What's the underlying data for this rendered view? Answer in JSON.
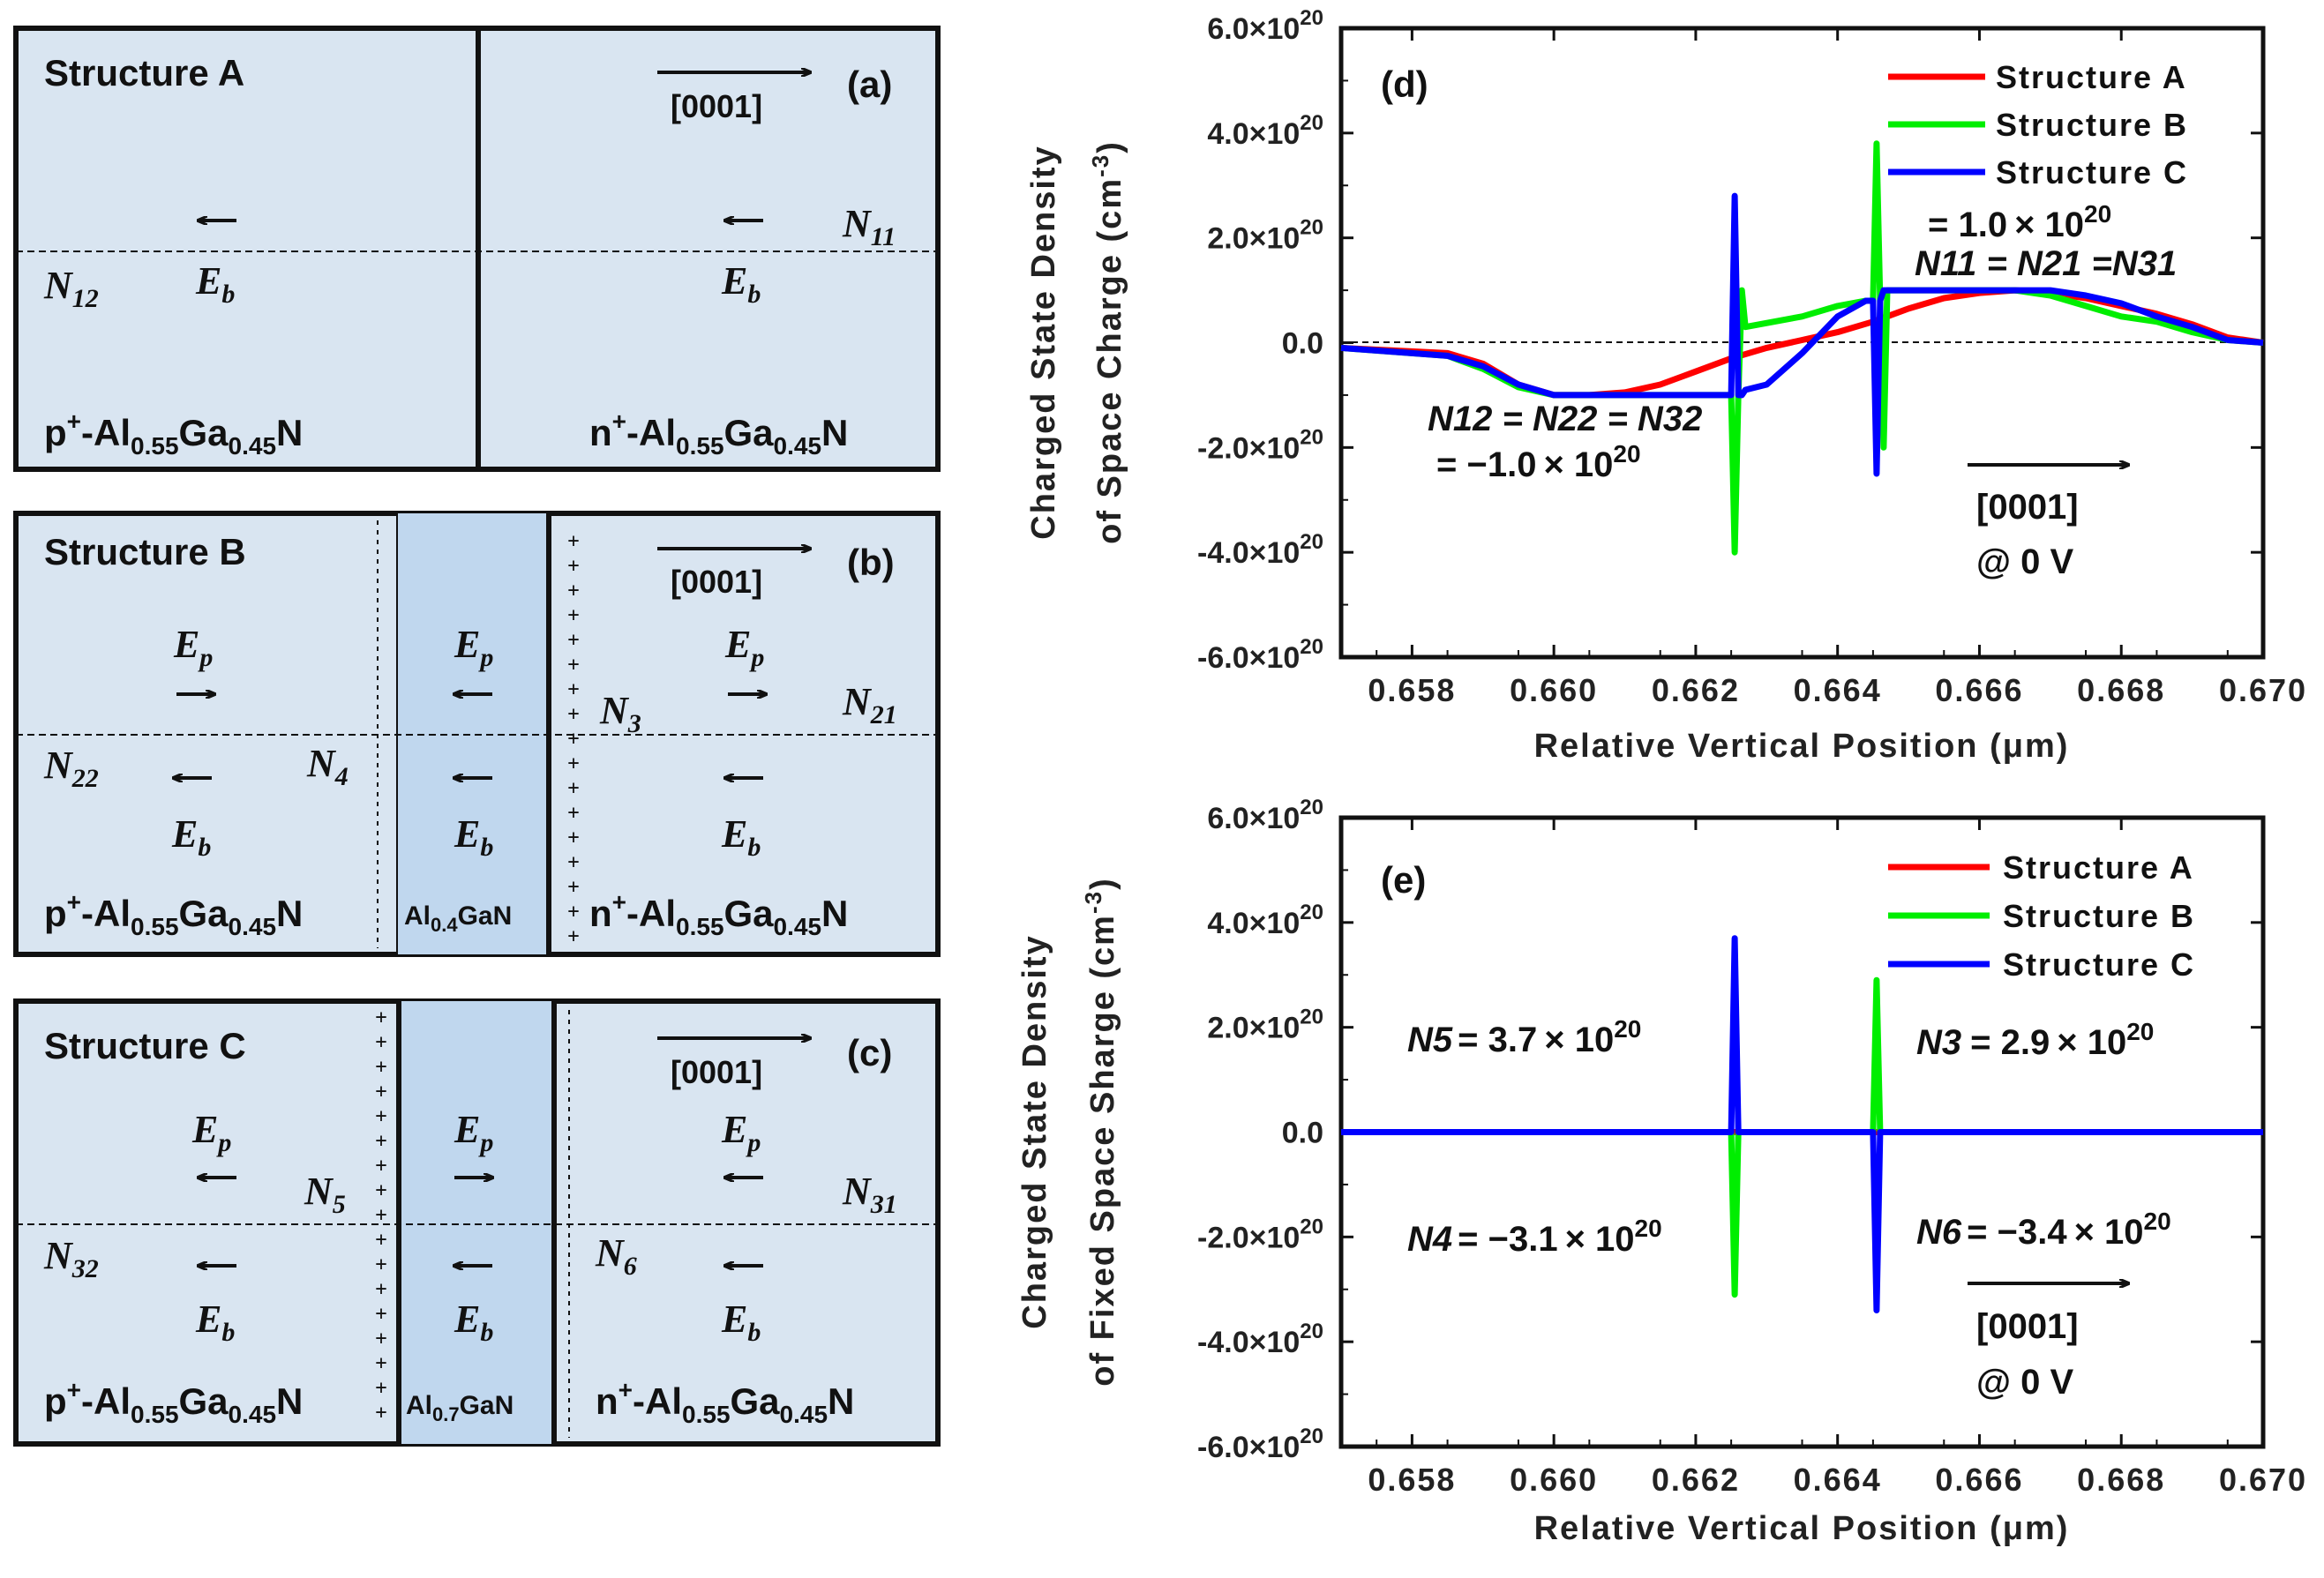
{
  "structures": {
    "a": {
      "title": "Structure A",
      "panel": "(a)",
      "direction": "[0001]",
      "left_material": "p+-Al0.55Ga0.45N",
      "right_material": "n+-Al0.55Ga0.45N",
      "interlayer": ""
    },
    "b": {
      "title": "Structure B",
      "panel": "(b)",
      "direction": "[0001]",
      "left_material": "p+-Al0.55Ga0.45N",
      "right_material": "n+-Al0.55Ga0.45N",
      "interlayer": "Al0.4GaN"
    },
    "c": {
      "title": "Structure C",
      "panel": "(c)",
      "direction": "[0001]",
      "left_material": "p+-Al0.55Ga0.45N",
      "right_material": "n+-Al0.55Ga0.45N",
      "interlayer": "Al0.7GaN"
    }
  },
  "field_symbols": {
    "eb": "E",
    "eb_sub": "b",
    "ep": "E",
    "ep_sub": "p"
  },
  "charge_labels": {
    "N11": "N11",
    "N12": "N12",
    "N21": "N21",
    "N22": "N22",
    "N3": "N3",
    "N4": "N4",
    "N5": "N5",
    "N6": "N6",
    "N31": "N31",
    "N32": "N32"
  },
  "legend": [
    "Structure A",
    "Structure B",
    "Structure C"
  ],
  "colors": {
    "structure_a": "#ff0000",
    "structure_b": "#00ee00",
    "structure_c": "#0000ff",
    "box_fill": "#d9e5f1",
    "interlayer_fill": "#c0d7ee"
  },
  "chart_data": [
    {
      "panel": "(d)",
      "type": "line",
      "ylabel_line1": "Charged State Density",
      "ylabel_line2": "of Space Charge (cm",
      "ylabel_exp": "-3",
      "ylabel_close": ")",
      "xlabel": "Relative Vertical Position (μm)",
      "xlim": [
        0.657,
        0.67
      ],
      "ylim": [
        -6e+20,
        6e+20
      ],
      "xticks": [
        "0.658",
        "0.660",
        "0.662",
        "0.664",
        "0.666",
        "0.668",
        "0.670"
      ],
      "yticks": [
        "6.0×10",
        "4.0×10",
        "2.0×10",
        "0.0",
        "-2.0×10",
        "-4.0×10",
        "-6.0×10"
      ],
      "ytick_exp": "20",
      "annotations": {
        "top_eq": "= 1.0",
        "top_mant": "× 10",
        "top_exp": "20",
        "top_line2": "N11 = N21 =N31",
        "bottom_line1": "N12 = N22 = N32",
        "bottom_eq": "= −1.0",
        "bottom_mant": "× 10",
        "bottom_exp": "20",
        "direction": "[0001]",
        "bias": "@ 0  V"
      },
      "series": [
        {
          "name": "Structure A",
          "x": [
            0.657,
            0.6585,
            0.659,
            0.6595,
            0.66,
            0.6605,
            0.661,
            0.6615,
            0.662,
            0.6625,
            0.663,
            0.6635,
            0.664,
            0.6645,
            0.665,
            0.6655,
            0.666,
            0.6665,
            0.667,
            0.6675,
            0.668,
            0.6685,
            0.669,
            0.6695,
            0.67
          ],
          "y": [
            -1e+19,
            -2e+19,
            -4e+19,
            -8e+19,
            -1e+20,
            -1e+20,
            -9.5e+19,
            -8e+19,
            -5.5e+19,
            -3e+19,
            -1e+19,
            5e+18,
            2e+19,
            4e+19,
            6.5e+19,
            8.5e+19,
            9.5e+19,
            1e+20,
            9.5e+19,
            8.5e+19,
            7e+19,
            5.5e+19,
            3.5e+19,
            1e+19,
            0.0
          ]
        },
        {
          "name": "Structure B",
          "x": [
            0.657,
            0.6585,
            0.659,
            0.6595,
            0.66,
            0.6605,
            0.661,
            0.6615,
            0.662,
            0.6624,
            0.6625,
            0.66255,
            0.6626,
            0.66265,
            0.6627,
            0.6635,
            0.664,
            0.6644,
            0.6645,
            0.66455,
            0.6646,
            0.66465,
            0.6647,
            0.665,
            0.6655,
            0.666,
            0.6665,
            0.667,
            0.6675,
            0.668,
            0.6685,
            0.669,
            0.6695,
            0.67
          ],
          "y": [
            -1e+19,
            -2.5e+19,
            -5e+19,
            -8.5e+19,
            -1e+20,
            -1e+20,
            -1e+20,
            -1e+20,
            -1e+20,
            -1e+20,
            -1e+20,
            -4e+20,
            -1e+20,
            1e+20,
            3e+19,
            5e+19,
            7e+19,
            8e+19,
            8e+19,
            3.8e+20,
            8e+19,
            -2e+20,
            1e+20,
            1e+20,
            1e+20,
            1e+20,
            1e+20,
            9e+19,
            7e+19,
            5e+19,
            4e+19,
            2e+19,
            5e+18,
            0.0
          ]
        },
        {
          "name": "Structure C",
          "x": [
            0.657,
            0.6585,
            0.659,
            0.6595,
            0.66,
            0.6605,
            0.661,
            0.6615,
            0.662,
            0.6624,
            0.6625,
            0.66255,
            0.6626,
            0.66265,
            0.6627,
            0.663,
            0.6635,
            0.664,
            0.6644,
            0.6645,
            0.66455,
            0.6646,
            0.66465,
            0.6647,
            0.665,
            0.6655,
            0.666,
            0.6665,
            0.667,
            0.6675,
            0.668,
            0.6685,
            0.669,
            0.6695,
            0.67
          ],
          "y": [
            -1e+19,
            -2.5e+19,
            -4.5e+19,
            -8e+19,
            -1e+20,
            -1e+20,
            -1e+20,
            -1e+20,
            -1e+20,
            -1e+20,
            -1e+20,
            2.8e+20,
            -1e+20,
            -1e+20,
            -9e+19,
            -8e+19,
            -2e+19,
            5e+19,
            8e+19,
            8e+19,
            -2.5e+20,
            8e+19,
            1e+20,
            1e+20,
            1e+20,
            1e+20,
            1e+20,
            1e+20,
            1e+20,
            9e+19,
            7.5e+19,
            5e+19,
            3e+19,
            5e+18,
            0.0
          ]
        }
      ]
    },
    {
      "panel": "(e)",
      "type": "line",
      "ylabel_line1": "Charged State Density",
      "ylabel_line2": "of Fixed Space Sharge (cm",
      "ylabel_exp": "-3",
      "ylabel_close": ")",
      "xlabel": "Relative Vertical Position (μm)",
      "xlim": [
        0.657,
        0.67
      ],
      "ylim": [
        -6e+20,
        6e+20
      ],
      "xticks": [
        "0.658",
        "0.660",
        "0.662",
        "0.664",
        "0.666",
        "0.668",
        "0.670"
      ],
      "yticks": [
        "6.0×10",
        "4.0×10",
        "2.0×10",
        "0.0",
        "-2.0×10",
        "-4.0×10",
        "-6.0×10"
      ],
      "ytick_exp": "20",
      "annotations": {
        "n5": "N5",
        "n5_val": "= 3.7",
        "n3": "N3",
        "n3_val": "= 2.9",
        "n4": "N4",
        "n4_val": "= −3.1",
        "n6": "N6",
        "n6_val": "= −3.4",
        "mant": "× 10",
        "exp": "20",
        "direction": "[0001]",
        "bias": "@ 0 V"
      },
      "series": [
        {
          "name": "Structure A",
          "x": [
            0.657,
            0.67
          ],
          "y": [
            0,
            0
          ]
        },
        {
          "name": "Structure B",
          "x": [
            0.657,
            0.6625,
            0.66255,
            0.6626,
            0.6645,
            0.66455,
            0.6646,
            0.67
          ],
          "y": [
            0,
            0,
            -3.1e+20,
            0,
            0,
            2.9e+20,
            0,
            0
          ]
        },
        {
          "name": "Structure C",
          "x": [
            0.657,
            0.6625,
            0.66255,
            0.6626,
            0.6645,
            0.66455,
            0.6646,
            0.67
          ],
          "y": [
            0,
            0,
            3.7e+20,
            0,
            0,
            -3.4e+20,
            0,
            0
          ]
        }
      ]
    }
  ]
}
